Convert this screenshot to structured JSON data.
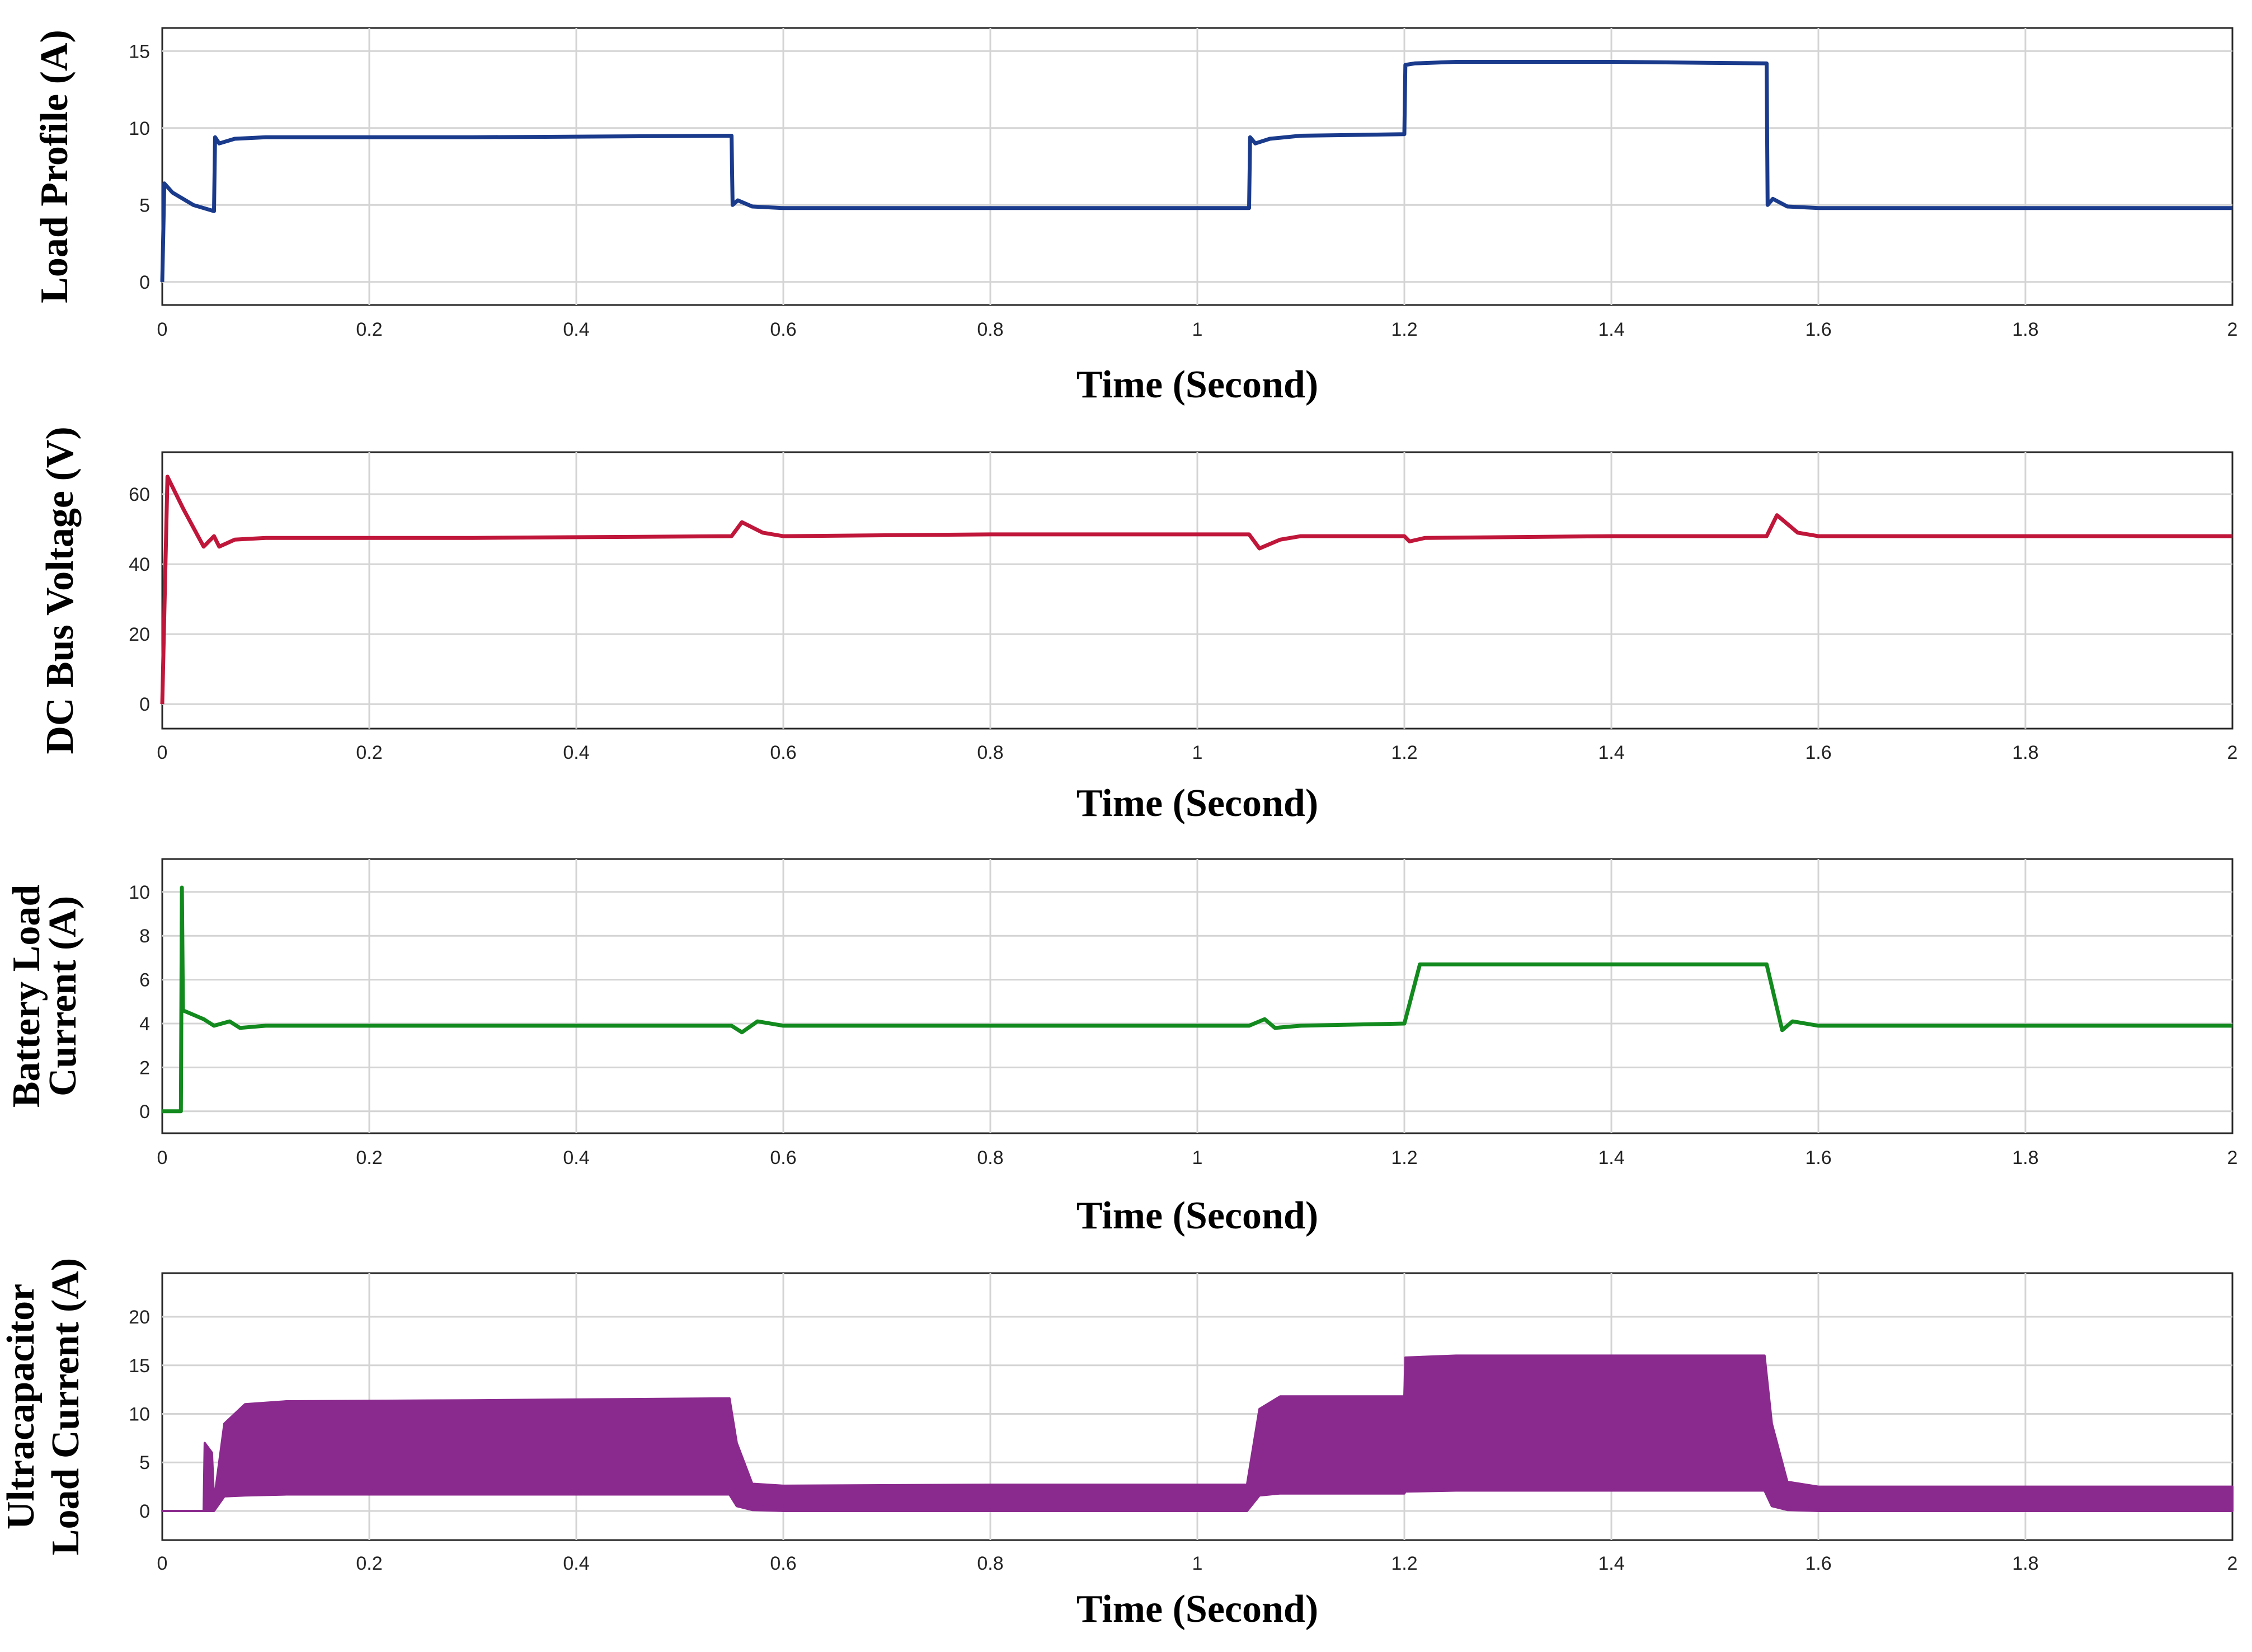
{
  "chart_data": [
    {
      "type": "line",
      "ylabel": "Load Profile (A)",
      "xlabel": "Time (Second)",
      "xlim": [
        0,
        2
      ],
      "ylim": [
        -1.5,
        16.5
      ],
      "xticks": [
        "0",
        "0.2",
        "0.4",
        "0.6",
        "0.8",
        "1",
        "1.2",
        "1.4",
        "1.6",
        "1.8",
        "2"
      ],
      "yticks": [
        "0",
        "5",
        "10",
        "15"
      ],
      "grid": true,
      "color": "#1a3a8c",
      "series": [
        {
          "x": [
            0,
            0.002,
            0.01,
            0.03,
            0.05,
            0.051,
            0.055,
            0.07,
            0.1,
            0.3,
            0.55,
            0.551,
            0.556,
            0.57,
            0.6,
            0.8,
            1.05,
            1.051,
            1.056,
            1.07,
            1.1,
            1.2,
            1.201,
            1.21,
            1.25,
            1.4,
            1.55,
            1.551,
            1.556,
            1.57,
            1.6,
            2.0
          ],
          "y": [
            0,
            6.4,
            5.8,
            5.0,
            4.6,
            9.4,
            9.0,
            9.3,
            9.4,
            9.4,
            9.5,
            5.0,
            5.3,
            4.9,
            4.8,
            4.8,
            4.8,
            9.4,
            9.0,
            9.3,
            9.5,
            9.6,
            14.1,
            14.2,
            14.3,
            14.3,
            14.2,
            5.0,
            5.4,
            4.9,
            4.8,
            4.8
          ]
        }
      ]
    },
    {
      "type": "line",
      "ylabel": "DC Bus Voltage (V)",
      "xlabel": "Time (Second)",
      "xlim": [
        0,
        2
      ],
      "ylim": [
        -7,
        72
      ],
      "xticks": [
        "0",
        "0.2",
        "0.4",
        "0.6",
        "0.8",
        "1",
        "1.2",
        "1.4",
        "1.6",
        "1.8",
        "2"
      ],
      "yticks": [
        "0",
        "20",
        "40",
        "60"
      ],
      "grid": true,
      "color": "#c0163a",
      "series": [
        {
          "x": [
            0,
            0.005,
            0.02,
            0.04,
            0.05,
            0.055,
            0.07,
            0.1,
            0.3,
            0.55,
            0.56,
            0.58,
            0.6,
            0.8,
            1.05,
            1.06,
            1.08,
            1.1,
            1.2,
            1.205,
            1.22,
            1.4,
            1.55,
            1.56,
            1.58,
            1.6,
            2.0
          ],
          "y": [
            0,
            65,
            56,
            45,
            48,
            45,
            47,
            47.5,
            47.5,
            48,
            52,
            49,
            48,
            48.5,
            48.5,
            44.5,
            47,
            48,
            48,
            46.5,
            47.5,
            48,
            48,
            54,
            49,
            48,
            48
          ]
        }
      ]
    },
    {
      "type": "line",
      "ylabel": "Battery Load Current (A)",
      "ylabel_lines": [
        "Battery Load",
        "Current (A)"
      ],
      "xlabel": "Time (Second)",
      "xlim": [
        0,
        2
      ],
      "ylim": [
        -1,
        11.5
      ],
      "xticks": [
        "0",
        "0.2",
        "0.4",
        "0.6",
        "0.8",
        "1",
        "1.2",
        "1.4",
        "1.6",
        "1.8",
        "2"
      ],
      "yticks": [
        "0",
        "2",
        "4",
        "6",
        "8",
        "10"
      ],
      "grid": true,
      "color": "#128a1e",
      "series": [
        {
          "x": [
            0,
            0.018,
            0.019,
            0.02,
            0.025,
            0.04,
            0.05,
            0.065,
            0.075,
            0.1,
            0.3,
            0.55,
            0.56,
            0.575,
            0.6,
            0.8,
            1.05,
            1.065,
            1.075,
            1.1,
            1.2,
            1.215,
            1.3,
            1.55,
            1.565,
            1.575,
            1.6,
            2.0
          ],
          "y": [
            0,
            0,
            10.2,
            4.6,
            4.5,
            4.2,
            3.9,
            4.1,
            3.8,
            3.9,
            3.9,
            3.9,
            3.6,
            4.1,
            3.9,
            3.9,
            3.9,
            4.2,
            3.8,
            3.9,
            4.0,
            6.7,
            6.7,
            6.7,
            3.7,
            4.1,
            3.9,
            3.9
          ]
        }
      ]
    },
    {
      "type": "area",
      "ylabel": "Ultracapacitor Load Current (A)",
      "ylabel_lines": [
        "Ultracapacitor",
        "Load Current (A)"
      ],
      "xlabel": "Time (Second)",
      "xlim": [
        0,
        2
      ],
      "ylim": [
        -3,
        24.5
      ],
      "xticks": [
        "0",
        "0.2",
        "0.4",
        "0.6",
        "0.8",
        "1",
        "1.2",
        "1.4",
        "1.6",
        "1.8",
        "2"
      ],
      "yticks": [
        "0",
        "5",
        "10",
        "15",
        "20"
      ],
      "grid": true,
      "color": "#8b2a8e",
      "envelope": {
        "x": [
          0,
          0.04,
          0.041,
          0.048,
          0.05,
          0.06,
          0.08,
          0.12,
          0.3,
          0.548,
          0.555,
          0.57,
          0.6,
          0.8,
          1.048,
          1.06,
          1.08,
          1.2,
          1.201,
          1.25,
          1.4,
          1.548,
          1.555,
          1.57,
          1.6,
          2.0
        ],
        "upper": [
          0,
          0,
          7,
          6,
          1,
          9,
          11,
          11.3,
          11.4,
          11.6,
          7,
          2.8,
          2.6,
          2.7,
          2.7,
          10.5,
          11.8,
          11.8,
          15.8,
          16,
          16,
          16,
          9,
          3,
          2.5,
          2.5
        ],
        "lower": [
          0,
          0,
          0,
          0,
          0,
          1.5,
          1.6,
          1.7,
          1.7,
          1.7,
          0.5,
          0.1,
          0,
          0,
          0,
          1.6,
          1.8,
          1.8,
          2,
          2.1,
          2.1,
          2.1,
          0.5,
          0.1,
          0,
          0
        ]
      }
    }
  ]
}
